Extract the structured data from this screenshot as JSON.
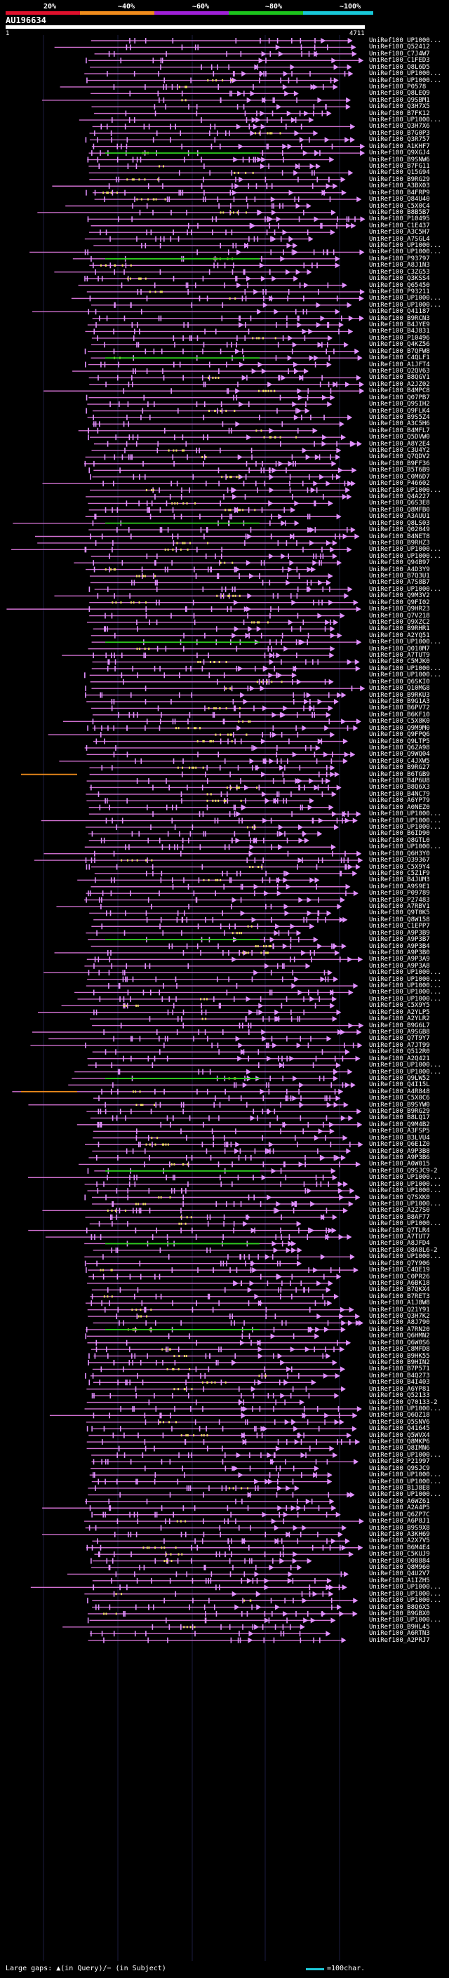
{
  "header": {
    "percent_labels": [
      "20%",
      "~40%",
      "~60%",
      "~80%",
      "~100%"
    ],
    "segment_colors": [
      "#e0102c",
      "#f08c1c",
      "#a020d8",
      "#1cc41c",
      "#18c8d8"
    ],
    "query_id": "AU196634",
    "tick_start": "1",
    "tick_end": "4711"
  },
  "colors": {
    "hit_line": "#d070d0",
    "hit_line_alt": "#c060e0",
    "green_segment": "#30d020",
    "orange_segment": "#f08c1c",
    "exon": "#e090ff",
    "yellow_mark": "#f0e060"
  },
  "hits": [
    "UniRef100_UP1000...",
    "UniRef100_Q52412",
    "UniRef100_C7J4W7",
    "UniRef100_C1FED3",
    "UniRef100_Q8L6D5",
    "UniRef100_UP1000...",
    "UniRef100_UP1000...",
    "UniRef100_P0578",
    "UniRef100_Q8LEQ9",
    "UniRef100_Q9SBM1",
    "UniRef100_Q3H7X5",
    "UniRef100_B7FK12",
    "UniRef100_UP1000...",
    "UniRef100_Q3H7X6",
    "UniRef100_B7G0P3",
    "UniRef100_Q3R757",
    "UniRef100_A1KHF7",
    "UniRef100_Q9XGJ4",
    "UniRef100_B9SNW6",
    "UniRef100_B7FG11",
    "UniRef100_Q15G94",
    "UniRef100_B9RG29",
    "UniRef100_A3BX03",
    "UniRef100_B4FRP9",
    "UniRef100_Q84U40",
    "UniRef100_C5X0C4",
    "UniRef100_B8B5B7",
    "UniRef100_P10495",
    "UniRef100_C1E437",
    "UniRef100_A3C5H7",
    "UniRef100_A7SGL4",
    "UniRef100_UP1000...",
    "UniRef100_UP1000...",
    "UniRef100_P93797",
    "UniRef100_A8J1N3",
    "UniRef100_C3ZG53",
    "UniRef100_Q3KSS4",
    "UniRef100_Q65450",
    "UniRef100_P93211",
    "UniRef100_UP1000...",
    "UniRef100_UP1000...",
    "UniRef100_Q41187",
    "UniRef100_B9RCN3",
    "UniRef100_B4JYE9",
    "UniRef100_B4J831",
    "UniRef100_P10496",
    "UniRef100_Q4KZ56",
    "UniRef100_B7QFW8",
    "UniRef100_C4QLF1",
    "UniRef100_A1JFT4",
    "UniRef100_Q2QV63",
    "UniRef100_B8QGV1",
    "UniRef100_A2JZ02",
    "UniRef100_B4MPC8",
    "UniRef100_Q07PB7",
    "UniRef100_Q9SIH2",
    "UniRef100_Q9FLK4",
    "UniRef100_B9S5Z4",
    "UniRef100_A3C5H6",
    "UniRef100_B4MFL7",
    "UniRef100_Q5DVW0",
    "UniRef100_A8Y2E4",
    "UniRef100_C3U4Y2",
    "UniRef100_Q7QDV2",
    "UniRef100_B9FF36",
    "UniRef100_B5T6B9",
    "UniRef100_C0M6D7",
    "UniRef100_P46602",
    "UniRef100_UP1000...",
    "UniRef100_Q4A227",
    "UniRef100_Q6S3E8",
    "UniRef100_Q8MFB0",
    "UniRef100_A3AUU1",
    "UniRef100_Q8LS03",
    "UniRef100_Q02049",
    "UniRef100_B4NET8",
    "UniRef100_B9RHZ3",
    "UniRef100_UP1000...",
    "UniRef100_UP1000...",
    "UniRef100_Q94B97",
    "UniRef100_A4D3Y9",
    "UniRef100_B7Q3U1",
    "UniRef100_A7S8B7",
    "UniRef100_UP1000...",
    "UniRef100_Q9M3V2",
    "UniRef100_Q9FI02",
    "UniRef100_Q9HR23",
    "UniRef100_Q7V218",
    "UniRef100_Q9XZC2",
    "UniRef100_B9RHR1",
    "UniRef100_A2YQ51",
    "UniRef100_UP1000...",
    "UniRef100_Q010M7",
    "UniRef100_A7TUT9",
    "UniRef100_C5MJK0",
    "UniRef100_UP1000...",
    "UniRef100_UP1000...",
    "UniRef100_Q6SKI0",
    "UniRef100_Q10MG8",
    "UniRef100_B9RKU3",
    "UniRef100_B9G1A3",
    "UniRef100_B6PV72",
    "UniRef100_B6KF10",
    "UniRef100_C5X8K0",
    "UniRef100_Q9M9M0",
    "UniRef100_Q9FPQ6",
    "UniRef100_Q9LTP5",
    "UniRef100_Q6ZA98",
    "UniRef100_Q9WQ04",
    "UniRef100_C4JXW5",
    "UniRef100_B9RG27",
    "UniRef100_B6TGB9",
    "UniRef100_B4P6U8",
    "UniRef100_B8Q6X3",
    "UniRef100_B4NC79",
    "UniRef100_A6YP79",
    "UniRef100_A0NEZ0",
    "UniRef100_UP1000...",
    "UniRef100_UP1000...",
    "UniRef100_UP1000...",
    "UniRef100_B6ID90",
    "UniRef100_Q8GTL0",
    "UniRef100_UP1000...",
    "UniRef100_Q6H3Y0",
    "UniRef100_Q39367",
    "UniRef100_C5X9Y4",
    "UniRef100_C5Z1F9",
    "UniRef100_B4JUM3",
    "UniRef100_A9S9E1",
    "UniRef100_P09789",
    "UniRef100_P27483",
    "UniRef100_A7RBV1",
    "UniRef100_Q9T0K5",
    "UniRef100_Q8W158",
    "UniRef100_C1EPP7",
    "UniRef100_A9P3B9",
    "UniRef100_A9P3B7",
    "UniRef100_A9P3B4",
    "UniRef100_A9P3B0",
    "UniRef100_A9P3A9",
    "UniRef100_A9P3A8",
    "UniRef100_UP1000...",
    "UniRef100_UP1000...",
    "UniRef100_UP1000...",
    "UniRef100_UP1000...",
    "UniRef100_UP1000...",
    "UniRef100_C5X9Y5",
    "UniRef100_A2YLP5",
    "UniRef100_A2YLR2",
    "UniRef100_B9G6L7",
    "UniRef100_A9SGB8",
    "UniRef100_Q7T9Y7",
    "UniRef100_A7JT99",
    "UniRef100_Q512R0",
    "UniRef100_A2Q421",
    "UniRef100_UP1000...",
    "UniRef100_UP1000...",
    "UniRef100_Q9LW52",
    "UniRef100_Q4I15L",
    "UniRef100_A4R848",
    "UniRef100_C5X0C6",
    "UniRef100_B9SYW0",
    "UniRef100_B9RG29",
    "UniRef100_B8LQ17",
    "UniRef100_Q9M4B2",
    "UniRef100_A3FSP5",
    "UniRef100_B3LVU4",
    "UniRef100_Q6E1Z0",
    "UniRef100_A9P3B8",
    "UniRef100_A9P3B6",
    "UniRef100_A0W015",
    "UniRef100_Q9SJC9-2",
    "UniRef100_UP1000...",
    "UniRef100_UP1000...",
    "UniRef100_UP1000...",
    "UniRef100_Q7SXK0",
    "UniRef100_UP1000...",
    "UniRef100_A2Z7S0",
    "UniRef100_B8AF77",
    "UniRef100_UP1000...",
    "UniRef100_Q7TLR4",
    "UniRef100_A7TUT7",
    "UniRef100_A8JFD4",
    "UniRef100_Q8A8L6-2",
    "UniRef100_UP1000...",
    "UniRef100_Q7Y906",
    "UniRef100_C4QE19",
    "UniRef100_C0PR26",
    "UniRef100_A6BK18",
    "UniRef100_B7QKX4",
    "UniRef100_B7RET3",
    "UniRef100_A1J8W8",
    "UniRef100_Q21Y91",
    "UniRef100_Q3H7K2",
    "UniRef100_A8J790",
    "UniRef100_A7RN20",
    "UniRef100_Q6HMN2",
    "UniRef100_Q6W0S6",
    "UniRef100_C8MFD8",
    "UniRef100_B9HK55",
    "UniRef100_B9HIN2",
    "UniRef100_B7P571",
    "UniRef100_B4Q273",
    "UniRef100_B4I403",
    "UniRef100_A6YP81",
    "UniRef100_Q52133",
    "UniRef100_Q70133-2",
    "UniRef100_UP1000...",
    "UniRef100_Q6QZ18",
    "UniRef100_Q5SNV6",
    "UniRef100_Q41645",
    "UniRef100_Q5WVX4",
    "UniRef100_Q8MKP6",
    "UniRef100_Q8IMN6",
    "UniRef100_UP1000...",
    "UniRef100_P21997",
    "UniRef100_Q9SJC9",
    "UniRef100_UP1000...",
    "UniRef100_UP1000...",
    "UniRef100_B1J8E8",
    "UniRef100_UP1000...",
    "UniRef100_A6WZ61",
    "UniRef100_A2A4P5",
    "UniRef100_Q6ZP7C",
    "UniRef100_A6P8J1",
    "UniRef100_B9S9X8",
    "UniRef100_A3KH69",
    "UniRef100_A2X7V5",
    "UniRef100_B6M4E4",
    "UniRef100_C5KUJ9",
    "UniRef100_Q08884",
    "UniRef100_Q8M960",
    "UniRef100_Q4U2V7",
    "UniRef100_A1IZH5",
    "UniRef100_UP1000...",
    "UniRef100_UP1000...",
    "UniRef100_UP1000...",
    "UniRef100_B8Q6X5",
    "UniRef100_B9GBX0",
    "UniRef100_UP1000...",
    "UniRef100_B9HL45",
    "UniRef100_A6RTN3",
    "UniRef100_A2PRJ7"
  ],
  "footer": {
    "left_text": "Large gaps: ▲(in Query)/− (in Subject)",
    "scale_text": "=100char."
  }
}
